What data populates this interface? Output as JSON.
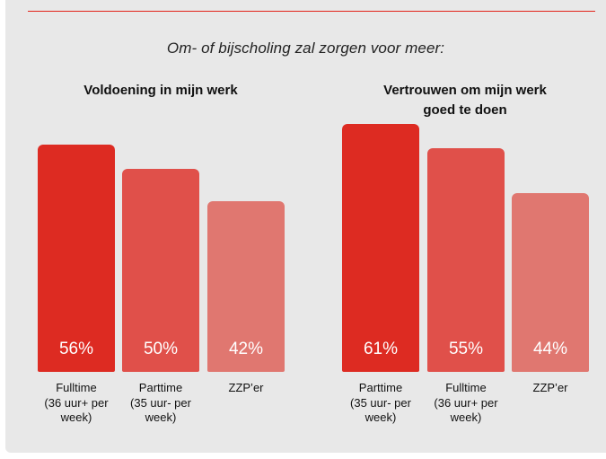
{
  "subtitle": "Om- of bijscholing zal zorgen voor meer:",
  "colors": {
    "accent": "#e2231a",
    "panel": "#e8e8e8"
  },
  "chart_data": [
    {
      "type": "bar",
      "title": "Voldoening in mijn werk",
      "categories": [
        [
          "Fulltime",
          "(36 uur+ per",
          "week)"
        ],
        [
          "Parttime",
          "(35 uur- per",
          "week)"
        ],
        [
          "ZZP’er"
        ]
      ],
      "values": [
        56,
        50,
        42
      ],
      "value_labels": [
        "56%",
        "50%",
        "42%"
      ],
      "colors": [
        "#dd2b22",
        "#e0504a",
        "#e07770"
      ],
      "ylim": [
        0,
        61
      ]
    },
    {
      "type": "bar",
      "title": "Vertrouwen om mijn werk goed te doen",
      "title_lines": [
        "Vertrouwen om mijn werk",
        "goed te doen"
      ],
      "categories": [
        [
          "Parttime",
          "(35 uur- per",
          "week)"
        ],
        [
          "Fulltime",
          "(36 uur+ per",
          "week)"
        ],
        [
          "ZZP’er"
        ]
      ],
      "values": [
        61,
        55,
        44
      ],
      "value_labels": [
        "61%",
        "55%",
        "44%"
      ],
      "colors": [
        "#dd2b22",
        "#e0504a",
        "#e07770"
      ],
      "ylim": [
        0,
        61
      ]
    }
  ]
}
